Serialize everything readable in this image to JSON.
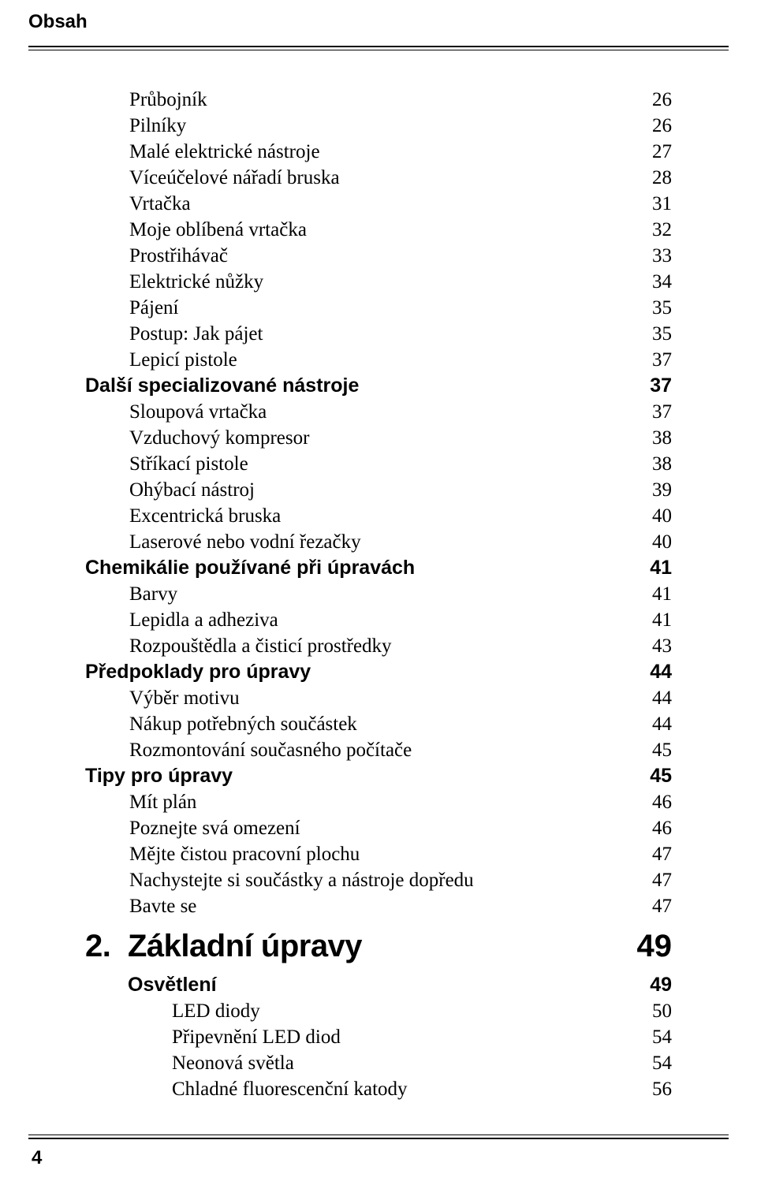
{
  "header": {
    "title": "Obsah"
  },
  "footer": {
    "page_number": "4"
  },
  "toc": {
    "entries": [
      {
        "level": 1,
        "label": "Průbojník",
        "page": "26"
      },
      {
        "level": 1,
        "label": "Pilníky",
        "page": "26"
      },
      {
        "level": 1,
        "label": "Malé elektrické nástroje",
        "page": "27"
      },
      {
        "level": 1,
        "label": "Víceúčelové nářadí bruska",
        "page": "28"
      },
      {
        "level": 1,
        "label": "Vrtačka",
        "page": "31"
      },
      {
        "level": 1,
        "label": "Moje oblíbená vrtačka",
        "page": "32"
      },
      {
        "level": 1,
        "label": "Prostřihávač",
        "page": "33"
      },
      {
        "level": 1,
        "label": "Elektrické nůžky",
        "page": "34"
      },
      {
        "level": 1,
        "label": "Pájení",
        "page": "35"
      },
      {
        "level": 1,
        "label": "Postup: Jak pájet",
        "page": "35"
      },
      {
        "level": 1,
        "label": "Lepicí pistole",
        "page": "37"
      },
      {
        "level": 0,
        "label": "Další specializované nástroje",
        "page": "37"
      },
      {
        "level": 1,
        "label": "Sloupová vrtačka",
        "page": "37"
      },
      {
        "level": 1,
        "label": "Vzduchový kompresor",
        "page": "38"
      },
      {
        "level": 1,
        "label": "Stříkací pistole",
        "page": "38"
      },
      {
        "level": 1,
        "label": "Ohýbací nástroj",
        "page": "39"
      },
      {
        "level": 1,
        "label": "Excentrická bruska",
        "page": "40"
      },
      {
        "level": 1,
        "label": "Laserové nebo vodní řezačky",
        "page": "40"
      },
      {
        "level": 0,
        "label": "Chemikálie používané při úpravách",
        "page": "41"
      },
      {
        "level": 1,
        "label": "Barvy",
        "page": "41"
      },
      {
        "level": 1,
        "label": "Lepidla a adheziva",
        "page": "41"
      },
      {
        "level": 1,
        "label": "Rozpouštědla a čisticí prostředky",
        "page": "43"
      },
      {
        "level": 0,
        "label": "Předpoklady pro úpravy",
        "page": "44"
      },
      {
        "level": 1,
        "label": "Výběr motivu",
        "page": "44"
      },
      {
        "level": 1,
        "label": "Nákup potřebných součástek",
        "page": "44"
      },
      {
        "level": 1,
        "label": "Rozmontování současného počítače",
        "page": "45"
      },
      {
        "level": 0,
        "label": "Tipy pro úpravy",
        "page": "45"
      },
      {
        "level": 1,
        "label": "Mít plán",
        "page": "46"
      },
      {
        "level": 1,
        "label": "Poznejte svá omezení",
        "page": "46"
      },
      {
        "level": 1,
        "label": "Mějte čistou pracovní plochu",
        "page": "47"
      },
      {
        "level": 1,
        "label": "Nachystejte si součástky a nástroje dopředu",
        "page": "47"
      },
      {
        "level": 1,
        "label": "Bavte se",
        "page": "47"
      }
    ],
    "chapter": {
      "number": "2.",
      "title": "Základní úpravy",
      "page": "49"
    },
    "after_chapter": [
      {
        "level": 0,
        "label": "Osvětlení",
        "page": "49"
      },
      {
        "level": 1,
        "label": "LED diody",
        "page": "50"
      },
      {
        "level": 1,
        "label": "Připevnění LED diod",
        "page": "54"
      },
      {
        "level": 1,
        "label": "Neonová světla",
        "page": "54"
      },
      {
        "level": 1,
        "label": "Chladné fluorescenční katody",
        "page": "56"
      }
    ]
  }
}
